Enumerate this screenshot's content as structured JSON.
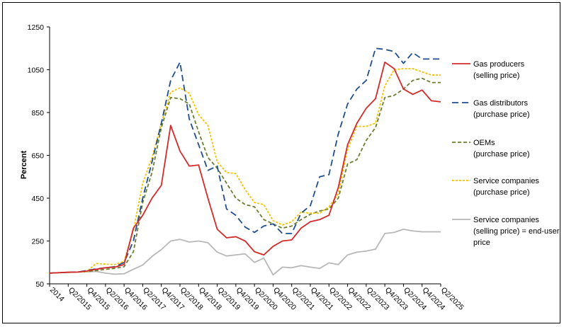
{
  "chart_data": {
    "type": "line",
    "title": "",
    "xlabel": "",
    "ylabel": "Percent",
    "ylim": [
      50,
      1250
    ],
    "yticks": [
      "50",
      "250",
      "450",
      "650",
      "850",
      "1050",
      "1250"
    ],
    "grid": false,
    "legend_position": "right",
    "x": [
      "2014",
      "Q1/2015",
      "Q2/2015",
      "Q3/2015",
      "Q4/2015",
      "Q1/2016",
      "Q2/2016",
      "Q3/2016",
      "Q4/2016",
      "Q1/2017",
      "Q2/2017",
      "Q3/2017",
      "Q4/2017",
      "Q1/2018",
      "Q2/2018",
      "Q3/2018",
      "Q4/2018",
      "Q1/2019",
      "Q2/2019",
      "Q3/2019",
      "Q4/2019",
      "Q1/2020",
      "Q2/2020",
      "Q3/2020",
      "Q4/2020",
      "Q1/2021",
      "Q2/2021",
      "Q3/2021",
      "Q4/2021",
      "Q1/2022",
      "Q2/2022",
      "Q3/2022",
      "Q4/2022",
      "Q1/2023",
      "Q2/2023",
      "Q3/2023",
      "Q4/2023",
      "Q1/2024",
      "Q2/2024",
      "Q3/2024",
      "Q4/2024",
      "Q1/2025",
      "Q2/2025"
    ],
    "xtick_labels": [
      "2014",
      "Q2/2015",
      "Q4/2015",
      "Q2/2016",
      "Q4/2016",
      "Q2/2017",
      "Q4/2017",
      "Q2/2018",
      "Q4/2018",
      "Q2/2019",
      "Q4/2019",
      "Q2/2020",
      "Q4/2020",
      "Q2/2021",
      "Q4/2021",
      "Q2/2022",
      "Q4/2022",
      "Q2/2023",
      "Q4/2023",
      "Q2/2024",
      "Q4/2024",
      "Q2/2025"
    ],
    "series": [
      {
        "name": "Gas producers\n(selling price)",
        "color": "#d42a2a",
        "dash": "solid",
        "values": [
          100,
          102,
          104,
          105,
          110,
          118,
          125,
          128,
          140,
          310,
          370,
          450,
          510,
          790,
          670,
          600,
          605,
          450,
          305,
          265,
          270,
          250,
          200,
          185,
          225,
          250,
          255,
          310,
          340,
          350,
          370,
          500,
          700,
          800,
          870,
          915,
          1085,
          1055,
          960,
          935,
          955,
          905,
          900
        ]
      },
      {
        "name": "Gas distributors\n(purchase price)",
        "color": "#1f4e8c",
        "dash": "long",
        "values": [
          100,
          102,
          104,
          105,
          112,
          120,
          125,
          130,
          150,
          250,
          450,
          620,
          800,
          1000,
          1085,
          820,
          700,
          580,
          600,
          400,
          370,
          315,
          290,
          320,
          330,
          285,
          285,
          380,
          415,
          550,
          560,
          750,
          890,
          960,
          1000,
          1150,
          1145,
          1135,
          1080,
          1130,
          1100,
          1100,
          1100
        ]
      },
      {
        "name": "OEMs\n(purchase price)",
        "color": "#6b7d2f",
        "dash": "short",
        "values": [
          100,
          102,
          104,
          105,
          108,
          112,
          118,
          122,
          130,
          200,
          430,
          570,
          780,
          920,
          915,
          890,
          760,
          640,
          590,
          520,
          450,
          420,
          410,
          350,
          330,
          310,
          320,
          350,
          375,
          390,
          400,
          450,
          610,
          630,
          720,
          780,
          920,
          930,
          960,
          1000,
          1010,
          990,
          990
        ]
      },
      {
        "name": "Service companies\n(purchase price)",
        "color": "#f5c100",
        "dash": "dot",
        "values": [
          100,
          102,
          104,
          105,
          108,
          145,
          142,
          140,
          155,
          300,
          520,
          640,
          800,
          945,
          965,
          940,
          840,
          790,
          620,
          570,
          565,
          490,
          430,
          420,
          345,
          325,
          340,
          385,
          380,
          380,
          410,
          470,
          680,
          785,
          785,
          800,
          975,
          1050,
          1055,
          1055,
          1040,
          1025,
          1025
        ]
      },
      {
        "name": "Service companies\n(selling price) = end-user\nprice",
        "color": "#b7b7b7",
        "dash": "solid",
        "values": [
          100,
          102,
          104,
          105,
          106,
          108,
          100,
          95,
          97,
          118,
          138,
          178,
          210,
          250,
          258,
          245,
          250,
          242,
          198,
          180,
          185,
          190,
          150,
          170,
          92,
          128,
          125,
          135,
          128,
          122,
          148,
          140,
          185,
          198,
          203,
          212,
          285,
          290,
          305,
          297,
          293,
          293,
          293
        ]
      }
    ]
  }
}
